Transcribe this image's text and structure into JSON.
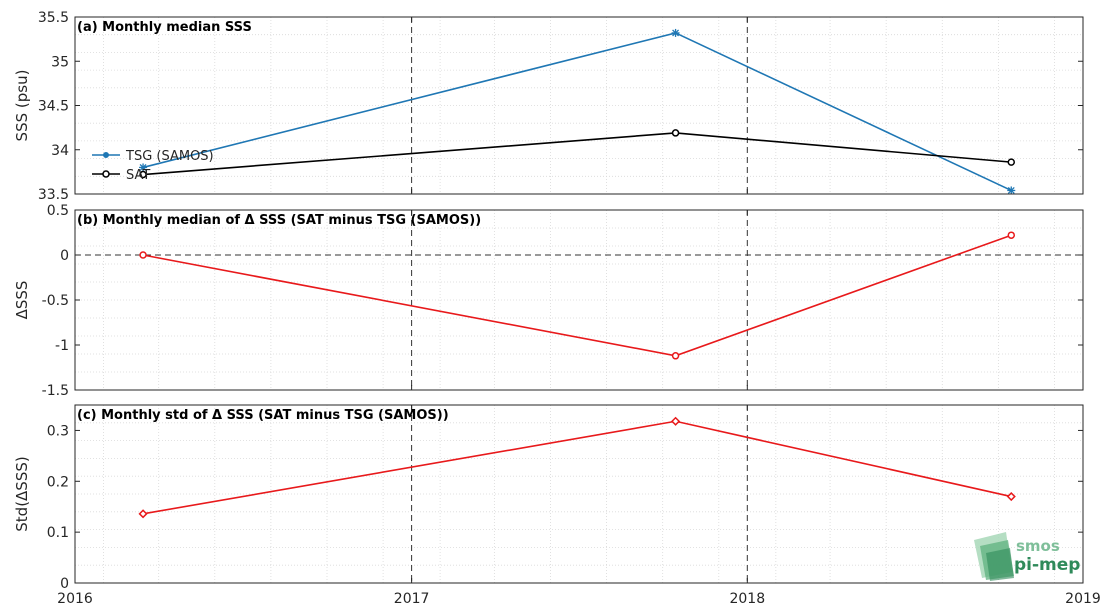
{
  "x_ticks": [
    "2016",
    "2017",
    "2018",
    "2019"
  ],
  "chart_data": [
    {
      "type": "line",
      "title": "(a) Monthly median SSS",
      "ylabel": "SSS (psu)",
      "xlim": [
        "2016-01-01",
        "2019-01-01"
      ],
      "ylim": [
        33.5,
        35.5
      ],
      "yticks": [
        33.5,
        34,
        34.5,
        35,
        35.5
      ],
      "ytick_labels": [
        "33.5",
        "34",
        "34.5",
        "35",
        "35.5"
      ],
      "grid": true,
      "legend": "left",
      "x": [
        "2016-03-15",
        "2017-10-15",
        "2018-10-15"
      ],
      "series": [
        {
          "name": "TSG (SAMOS)",
          "color": "#1f77b4",
          "marker": "asterisk",
          "values": [
            33.8,
            35.32,
            33.54
          ]
        },
        {
          "name": "SAT",
          "color": "#000000",
          "marker": "circle",
          "values": [
            33.72,
            34.19,
            33.86
          ]
        }
      ]
    },
    {
      "type": "line",
      "title": "(b) Monthly median of Δ SSS (SAT minus TSG (SAMOS))",
      "ylabel": "ΔSSS",
      "xlim": [
        "2016-01-01",
        "2019-01-01"
      ],
      "ylim": [
        -1.5,
        0.5
      ],
      "yticks": [
        -1.5,
        -1,
        -0.5,
        0,
        0.5
      ],
      "ytick_labels": [
        "-1.5",
        "-1",
        "-0.5",
        "0",
        "0.5"
      ],
      "grid": true,
      "zero_line": true,
      "x": [
        "2016-03-15",
        "2017-10-15",
        "2018-10-15"
      ],
      "series": [
        {
          "color": "#e8191b",
          "marker": "circle",
          "values": [
            0.0,
            -1.12,
            0.22
          ]
        }
      ]
    },
    {
      "type": "line",
      "title": "(c) Monthly std of Δ SSS (SAT minus TSG (SAMOS))",
      "ylabel": "Std(ΔSSS)",
      "xlim": [
        "2016-01-01",
        "2019-01-01"
      ],
      "ylim": [
        0,
        0.35
      ],
      "yticks": [
        0,
        0.1,
        0.2,
        0.3
      ],
      "ytick_labels": [
        "0",
        "0.1",
        "0.2",
        "0.3"
      ],
      "grid": true,
      "x": [
        "2016-03-15",
        "2017-10-15",
        "2018-10-15"
      ],
      "series": [
        {
          "color": "#e8191b",
          "marker": "diamond",
          "values": [
            0.136,
            0.318,
            0.17
          ]
        }
      ]
    }
  ],
  "year_lines": [
    "2017-01-01",
    "2018-01-01"
  ],
  "logo": {
    "line1": "smos",
    "line2": "pi-mep",
    "color_light": "#7fbf9a",
    "color_dark": "#2f8a5a"
  }
}
